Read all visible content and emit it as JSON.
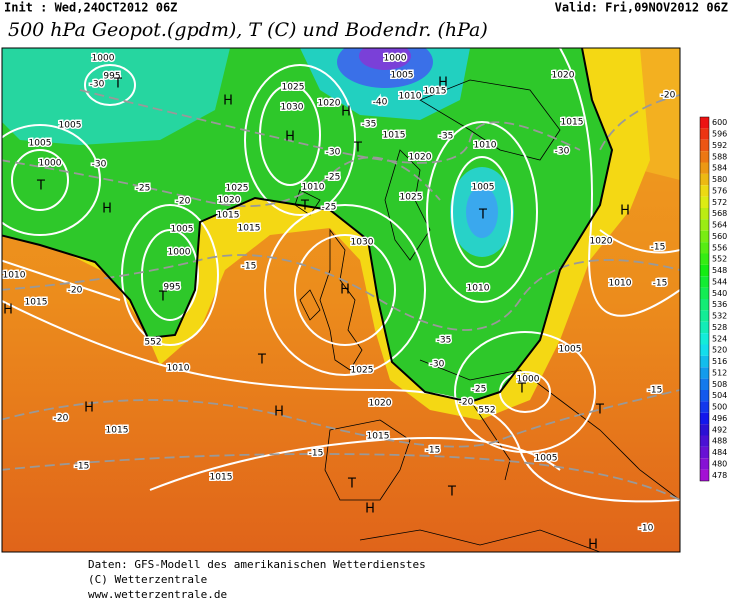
{
  "header": {
    "init": "Init : Wed,24OCT2012 06Z",
    "valid": "Valid: Fri,09NOV2012 06Z",
    "title": "500 hPa Geopot.(gpdm), T (C) und Bodendr. (hPa)"
  },
  "colorbar": [
    "600",
    "596",
    "592",
    "588",
    "584",
    "580",
    "576",
    "572",
    "568",
    "564",
    "560",
    "556",
    "552",
    "548",
    "544",
    "540",
    "536",
    "532",
    "528",
    "524",
    "520",
    "516",
    "512",
    "508",
    "504",
    "500",
    "496",
    "492",
    "488",
    "484",
    "480",
    "478"
  ],
  "map": {
    "labels": [
      "1000",
      "995",
      "-30",
      "T",
      "H",
      "1025",
      "1030",
      "1020",
      "H",
      "H",
      "1015",
      "-35",
      "-40",
      "1005",
      "1000",
      "1010",
      "1015",
      "H",
      "1020",
      "-30",
      "1015",
      "-35",
      "1010",
      "1020",
      "T",
      "-30",
      "1005",
      "T",
      "1010",
      "-25",
      "1025",
      "-25",
      "T",
      "1025",
      "1020",
      "1015",
      "-20",
      "H",
      "-25",
      "1005",
      "-30",
      "1000",
      "T",
      "1005",
      "1005",
      "1000",
      "995",
      "T",
      "552",
      "1010",
      "-20",
      "1015",
      "1010",
      "H",
      "-15",
      "1015",
      "1030",
      "H",
      "1010",
      "T",
      "1025",
      "1020",
      "H",
      "H",
      "-20",
      "1015",
      "-15",
      "1015",
      "1015",
      "-15",
      "-15",
      "T",
      "H",
      "T",
      "1005",
      "1000",
      "T",
      "-25",
      "-20",
      "552",
      "1005",
      "-15",
      "1010",
      "-15",
      "H",
      "1020",
      "-15",
      "-20",
      "H",
      "-10",
      "-35",
      "-30",
      "T"
    ]
  },
  "footer": [
    "Daten: GFS-Modell des amerikanischen Wetterdienstes",
    "(C) Wetterzentrale",
    "www.wetterzentrale.de"
  ]
}
